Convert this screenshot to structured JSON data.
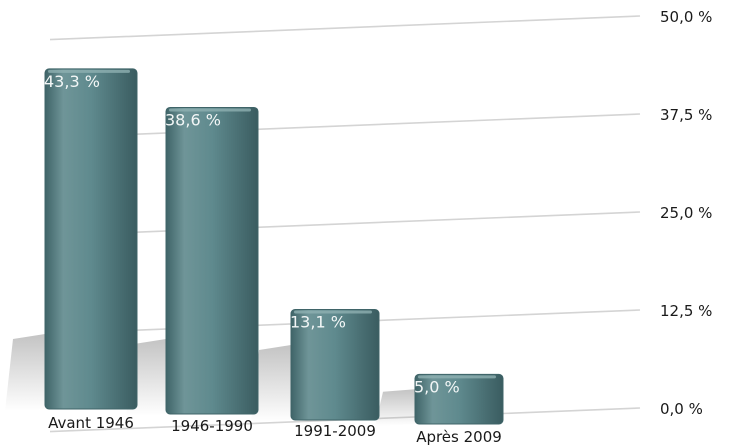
{
  "chart_data": {
    "type": "bar",
    "categories": [
      "Avant 1946",
      "1946-1990",
      "1991-2009",
      "Après 2009"
    ],
    "values": [
      43.3,
      38.6,
      13.1,
      5.0
    ],
    "data_labels": [
      "43,3 %",
      "38,6 %",
      "13,1 %",
      "5,0 %"
    ],
    "y_ticks": [
      "0,0 %",
      "12,5 %",
      "25,0 %",
      "37,5 %",
      "50,0 %"
    ],
    "ylim": [
      0,
      50
    ],
    "grid": true,
    "bar_color": "#5f8a8e",
    "bar_color_dark": "#3f6468",
    "bar_color_light": "#8fb0b2"
  }
}
